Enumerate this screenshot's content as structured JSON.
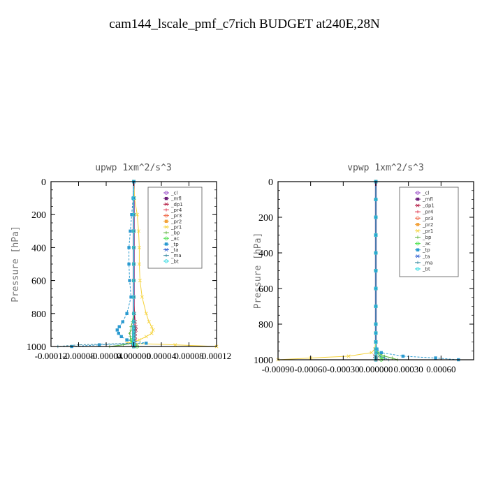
{
  "figure": {
    "title": "cam144_lscale_pmf_c7rich  BUDGET at240E,28N"
  },
  "legend_entries": [
    {
      "name": "_cl",
      "color": "#9b4fc9"
    },
    {
      "name": "_mfl",
      "color": "#6b1e7a"
    },
    {
      "name": "_dp1",
      "color": "#b0103a"
    },
    {
      "name": "_pr4",
      "color": "#e0304a"
    },
    {
      "name": "_pr3",
      "color": "#f06a4a"
    },
    {
      "name": "_pr2",
      "color": "#f2a23a"
    },
    {
      "name": "_pr1",
      "color": "#f5d23a"
    },
    {
      "name": "_bp",
      "color": "#5ab23a"
    },
    {
      "name": "_ac",
      "color": "#4ae04a"
    },
    {
      "name": "_tp",
      "color": "#2a9ad0"
    },
    {
      "name": "_ta",
      "color": "#2a5ad0"
    },
    {
      "name": "_ma",
      "color": "#3a8aa0"
    },
    {
      "name": "_bt",
      "color": "#2ad8e0"
    }
  ],
  "chart_data": [
    {
      "type": "line",
      "title": "upwp   1xm^2/s^3",
      "xlabel": "",
      "ylabel": "Pressure [hPa]",
      "xlim": [
        -0.00012,
        0.00012
      ],
      "ylim": [
        1000,
        0
      ],
      "x_ticks": [
        -0.00012,
        -8e-05,
        -4e-05,
        0.0,
        4e-05,
        8e-05,
        0.00012
      ],
      "x_tick_labels": [
        "-0.00012",
        "-0.00008",
        "-0.00004",
        "0.000000",
        "0.00004",
        "0.00008",
        "0.00012"
      ],
      "y_ticks": [
        0,
        200,
        400,
        600,
        800,
        1000
      ],
      "y_tick_labels": [
        "0",
        "200",
        "400",
        "600",
        "800",
        "1000"
      ],
      "legend_position": "top-right",
      "pressure": [
        0,
        100,
        200,
        300,
        400,
        500,
        600,
        700,
        800,
        850,
        880,
        900,
        920,
        940,
        960,
        980,
        990,
        1000
      ],
      "series": [
        {
          "name": "_cl",
          "values": [
            0,
            0,
            0,
            0,
            0,
            0,
            0,
            0,
            0,
            0,
            0,
            0,
            0,
            0,
            0,
            0,
            0,
            0
          ]
        },
        {
          "name": "_mfl",
          "values": [
            0,
            0,
            0,
            0,
            0,
            0,
            0,
            0,
            0,
            0,
            0,
            0,
            0,
            0,
            0,
            0,
            0,
            0
          ]
        },
        {
          "name": "_dp1",
          "values": [
            0,
            0,
            0,
            0,
            0,
            0,
            0,
            0,
            1e-06,
            2e-06,
            3e-06,
            3e-06,
            2e-06,
            2e-06,
            2e-06,
            1e-06,
            -2e-06,
            0
          ]
        },
        {
          "name": "_pr4",
          "values": [
            0,
            0,
            0,
            0,
            0,
            0,
            0,
            0,
            0,
            0,
            1e-06,
            1e-06,
            0,
            0,
            2e-06,
            2e-06,
            -1e-06,
            0
          ]
        },
        {
          "name": "_pr3",
          "values": [
            0,
            0,
            0,
            0,
            0,
            0,
            0,
            0,
            0,
            0,
            0,
            0,
            0,
            0,
            0,
            0,
            3e-06,
            0
          ]
        },
        {
          "name": "_pr2",
          "values": [
            0,
            0,
            0,
            0,
            0,
            0,
            0,
            0,
            0,
            0,
            0,
            0,
            0,
            0,
            0,
            0,
            0,
            0
          ]
        },
        {
          "name": "_pr1",
          "values": [
            0,
            1e-06,
            5e-06,
            7e-06,
            8e-06,
            8e-06,
            9e-06,
            1.2e-05,
            1.8e-05,
            2.2e-05,
            2.6e-05,
            2.8e-05,
            2.6e-05,
            1.8e-05,
            8e-06,
            -1e-05,
            6e-05,
            0.00012
          ]
        },
        {
          "name": "_bp",
          "values": [
            0,
            0,
            0,
            0,
            0,
            0,
            0,
            0,
            0,
            -2e-06,
            -4e-06,
            -4e-06,
            -6e-06,
            -5e-06,
            -5e-06,
            -2e-06,
            -1.5e-05,
            -3.5e-05
          ]
        },
        {
          "name": "_ac",
          "values": [
            0,
            0,
            0,
            0,
            0,
            0,
            0,
            0,
            0,
            0,
            0,
            0,
            0,
            0,
            -3e-06,
            -2e-06,
            2e-06,
            5e-06
          ]
        },
        {
          "name": "_tp",
          "values": [
            0,
            -1e-06,
            -3e-06,
            -5e-06,
            -7e-06,
            -7e-06,
            -6e-06,
            -4e-06,
            -1e-05,
            -1.6e-05,
            -2.1e-05,
            -2.4e-05,
            -2.2e-05,
            -1.8e-05,
            -1e-05,
            1.8e-05,
            -5e-05,
            -9e-05
          ]
        },
        {
          "name": "_ta",
          "values": [
            0,
            0,
            0,
            0,
            0,
            0,
            0,
            0,
            0,
            0,
            0,
            0,
            0,
            0,
            0,
            0,
            0,
            0
          ]
        },
        {
          "name": "_ma",
          "values": [
            0,
            0,
            0,
            0,
            0,
            0,
            0,
            0,
            0,
            0,
            0,
            0,
            0,
            0,
            0,
            0,
            -8e-05,
            -0.00011
          ]
        },
        {
          "name": "_bt",
          "values": [
            0,
            0,
            0,
            0,
            0,
            0,
            0,
            0,
            0,
            0,
            0,
            0,
            0,
            0,
            0,
            0,
            0,
            0
          ]
        }
      ]
    },
    {
      "type": "line",
      "title": "vpwp   1xm^2/s^3",
      "xlabel": "",
      "ylabel": "Pressure [hPa]",
      "xlim": [
        -0.0009,
        0.0009
      ],
      "ylim": [
        1000,
        0
      ],
      "x_ticks": [
        -0.0009,
        -0.0006,
        -0.0003,
        0.0,
        0.0003,
        0.0006
      ],
      "x_tick_labels": [
        "-0.00090",
        "-0.00060",
        "-0.00030",
        "0.000000",
        "0.00030",
        "0.00060"
      ],
      "y_ticks": [
        0,
        200,
        400,
        600,
        800,
        1000
      ],
      "y_tick_labels": [
        "0",
        "200",
        "400",
        "600",
        "800",
        "1000"
      ],
      "legend_position": "top-right",
      "pressure": [
        0,
        100,
        200,
        300,
        400,
        500,
        600,
        700,
        800,
        850,
        900,
        940,
        960,
        980,
        990,
        1000
      ],
      "series": [
        {
          "name": "_cl",
          "values": [
            0,
            0,
            0,
            0,
            0,
            0,
            0,
            0,
            0,
            0,
            0,
            0,
            0,
            0,
            0,
            0
          ]
        },
        {
          "name": "_mfl",
          "values": [
            0,
            0,
            0,
            0,
            0,
            0,
            0,
            0,
            0,
            0,
            0,
            0,
            0,
            0,
            0,
            0
          ]
        },
        {
          "name": "_dp1",
          "values": [
            0,
            0,
            0,
            0,
            0,
            0,
            0,
            0,
            0,
            0,
            0,
            0,
            1e-05,
            -1e-05,
            1e-05,
            0
          ]
        },
        {
          "name": "_pr4",
          "values": [
            0,
            0,
            0,
            0,
            0,
            0,
            0,
            0,
            0,
            0,
            0,
            0,
            0,
            0,
            0,
            0
          ]
        },
        {
          "name": "_pr3",
          "values": [
            0,
            0,
            0,
            0,
            0,
            0,
            0,
            0,
            0,
            0,
            0,
            0,
            0,
            0,
            0,
            0
          ]
        },
        {
          "name": "_pr2",
          "values": [
            0,
            0,
            0,
            0,
            0,
            0,
            0,
            0,
            0,
            0,
            0,
            0,
            0,
            0,
            0,
            0
          ]
        },
        {
          "name": "_pr1",
          "values": [
            0,
            0,
            0,
            0,
            0,
            0,
            0,
            0,
            0,
            0,
            0,
            -1e-05,
            -4e-05,
            -0.00025,
            -0.0006,
            -0.0009
          ]
        },
        {
          "name": "_bp",
          "values": [
            0,
            0,
            0,
            0,
            0,
            0,
            0,
            0,
            0,
            0,
            0,
            0,
            2e-05,
            8e-05,
            0.00015,
            0.0002
          ]
        },
        {
          "name": "_ac",
          "values": [
            0,
            0,
            0,
            0,
            0,
            0,
            0,
            0,
            0,
            0,
            0,
            0,
            1e-05,
            4e-05,
            6e-05,
            5e-05
          ]
        },
        {
          "name": "_tp",
          "values": [
            0,
            0,
            0,
            0,
            0,
            0,
            0,
            0,
            0,
            0,
            0,
            1e-05,
            5e-05,
            0.00025,
            0.00055,
            0.00076
          ]
        },
        {
          "name": "_ta",
          "values": [
            0,
            0,
            0,
            0,
            0,
            0,
            0,
            0,
            0,
            0,
            0,
            0,
            0,
            0,
            0,
            0
          ]
        },
        {
          "name": "_ma",
          "values": [
            0,
            0,
            0,
            0,
            0,
            0,
            0,
            0,
            0,
            0,
            0,
            0,
            1e-05,
            4e-05,
            8e-05,
            0.00012
          ]
        },
        {
          "name": "_bt",
          "values": [
            0,
            0,
            0,
            0,
            0,
            0,
            0,
            0,
            0,
            0,
            0,
            0,
            0,
            0,
            0,
            0
          ]
        }
      ]
    }
  ]
}
